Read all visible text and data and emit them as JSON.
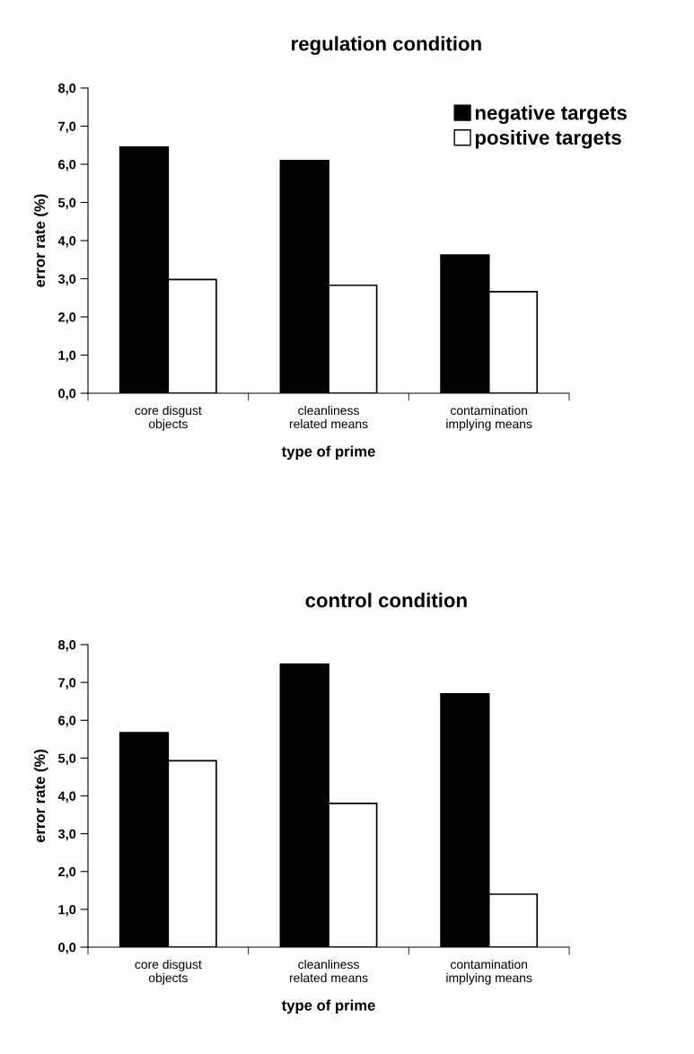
{
  "chart_data": [
    {
      "type": "bar",
      "title": "regulation condition",
      "xlabel": "type of prime",
      "ylabel": "error rate (%)",
      "categories": [
        "core disgust\nobjects",
        "cleanliness\nrelated means",
        "contamination\nimplying means"
      ],
      "series": [
        {
          "name": "negative targets",
          "color": "#000000",
          "values": [
            6.45,
            6.1,
            3.62
          ]
        },
        {
          "name": "positive targets",
          "color": "#ffffff",
          "values": [
            2.98,
            2.83,
            2.66
          ]
        }
      ],
      "ylim": [
        0,
        8
      ],
      "yticks": [
        {
          "value": 0,
          "label": "0,0"
        },
        {
          "value": 1,
          "label": "1,0"
        },
        {
          "value": 2,
          "label": "2,0"
        },
        {
          "value": 3,
          "label": "3,0"
        },
        {
          "value": 4,
          "label": "4,0"
        },
        {
          "value": 5,
          "label": "5,0"
        },
        {
          "value": 6,
          "label": "6,0"
        },
        {
          "value": 7,
          "label": "7,0"
        },
        {
          "value": 8,
          "label": "8,0"
        }
      ],
      "grid": false,
      "legend": "top right"
    },
    {
      "type": "bar",
      "title": "control condition",
      "xlabel": "type of prime",
      "ylabel": "error rate (%)",
      "categories": [
        "core disgust\nobjects",
        "cleanliness\nrelated means",
        "contamination\nimplying means"
      ],
      "series": [
        {
          "color": "#000000",
          "values": [
            5.67,
            7.48,
            6.7
          ]
        },
        {
          "color": "#ffffff",
          "values": [
            4.93,
            3.8,
            1.4
          ]
        }
      ],
      "ylim": [
        0,
        8
      ],
      "yticks": [
        {
          "value": 0,
          "label": "0,0"
        },
        {
          "value": 1,
          "label": "1,0"
        },
        {
          "value": 2,
          "label": "2,0"
        },
        {
          "value": 3,
          "label": "3,0"
        },
        {
          "value": 4,
          "label": "4,0"
        },
        {
          "value": 5,
          "label": "5,0"
        },
        {
          "value": 6,
          "label": "6,0"
        },
        {
          "value": 7,
          "label": "7,0"
        },
        {
          "value": 8,
          "label": "8,0"
        }
      ],
      "grid": false
    }
  ]
}
